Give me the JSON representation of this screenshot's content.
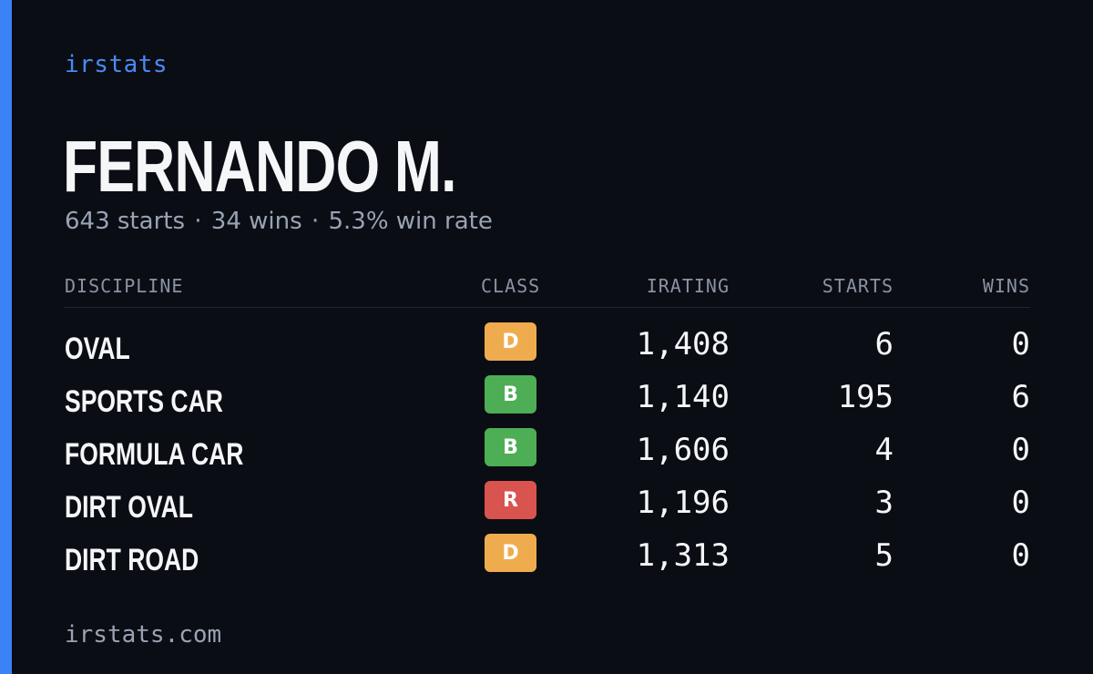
{
  "brand": "irstats",
  "driver": {
    "name": "FERNANDO M."
  },
  "summary": {
    "starts": "643 starts",
    "wins": "34 wins",
    "win_rate": "5.3% win rate",
    "separator": "·"
  },
  "table": {
    "headers": {
      "discipline": "DISCIPLINE",
      "class": "CLASS",
      "irating": "IRATING",
      "starts": "STARTS",
      "wins": "WINS"
    },
    "rows": [
      {
        "discipline": "OVAL",
        "class": "D",
        "class_color": "#efac4e",
        "irating": "1,408",
        "starts": "6",
        "wins": "0"
      },
      {
        "discipline": "SPORTS CAR",
        "class": "B",
        "class_color": "#4dae55",
        "irating": "1,140",
        "starts": "195",
        "wins": "6"
      },
      {
        "discipline": "FORMULA CAR",
        "class": "B",
        "class_color": "#4dae55",
        "irating": "1,606",
        "starts": "4",
        "wins": "0"
      },
      {
        "discipline": "DIRT OVAL",
        "class": "R",
        "class_color": "#d9534f",
        "irating": "1,196",
        "starts": "3",
        "wins": "0"
      },
      {
        "discipline": "DIRT ROAD",
        "class": "D",
        "class_color": "#efac4e",
        "irating": "1,313",
        "starts": "5",
        "wins": "0"
      }
    ]
  },
  "footer": {
    "url": "irstats.com"
  },
  "colors": {
    "background": "#0a0d14",
    "accent": "#3b82f6",
    "brand": "#4a8af4"
  }
}
